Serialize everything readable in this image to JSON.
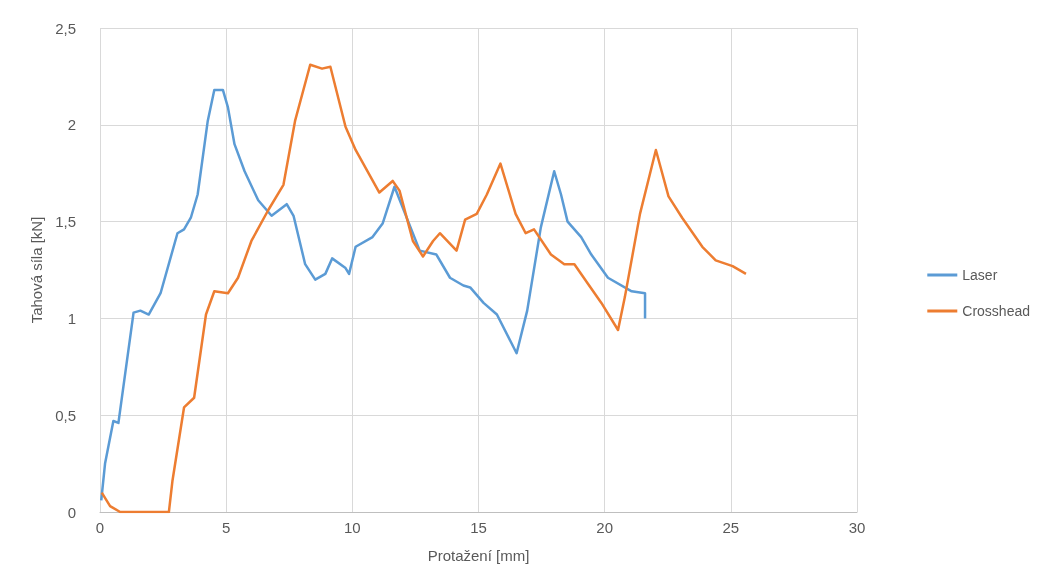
{
  "chart_data": {
    "type": "line",
    "xlabel": "Protažení [mm]",
    "ylabel": "Tahová síla [kN]",
    "xlim": [
      0,
      30
    ],
    "xticks": [
      0,
      5,
      10,
      15,
      20,
      25,
      30
    ],
    "ylim": [
      0,
      2.5
    ],
    "yticks": [
      {
        "value": 0,
        "label": "0"
      },
      {
        "value": 0.5,
        "label": "0,5"
      },
      {
        "value": 1,
        "label": "1"
      },
      {
        "value": 1.5,
        "label": "1,5"
      },
      {
        "value": 2,
        "label": "2"
      },
      {
        "value": 2.5,
        "label": "2,5"
      }
    ],
    "grid": true,
    "legend": "right",
    "marker": "none",
    "line_style": "solid",
    "series": [
      {
        "name": "Laser",
        "color": "#5b9bd5",
        "x": [
          0.05,
          0.2,
          0.53,
          0.73,
          0.93,
          1.33,
          1.6,
          1.93,
          2.4,
          3.07,
          3.33,
          3.6,
          3.87,
          4.27,
          4.53,
          4.87,
          5.07,
          5.33,
          5.73,
          6.27,
          6.8,
          7.4,
          7.67,
          8.13,
          8.53,
          8.93,
          9.2,
          9.73,
          9.87,
          10.13,
          10.8,
          11.2,
          11.67,
          12.67,
          13.33,
          13.87,
          14.4,
          14.67,
          15.2,
          15.73,
          16.51,
          16.93,
          17.47,
          18,
          18.27,
          18.53,
          19.07,
          19.47,
          20.13,
          21.07,
          21.6,
          21.6
        ],
        "values": [
          0.06,
          0.25,
          0.47,
          0.46,
          0.65,
          1.03,
          1.04,
          1.02,
          1.13,
          1.44,
          1.46,
          1.52,
          1.64,
          2.02,
          2.18,
          2.18,
          2.09,
          1.9,
          1.76,
          1.61,
          1.53,
          1.59,
          1.53,
          1.28,
          1.2,
          1.23,
          1.31,
          1.26,
          1.23,
          1.37,
          1.42,
          1.49,
          1.68,
          1.35,
          1.33,
          1.21,
          1.17,
          1.16,
          1.08,
          1.02,
          0.82,
          1.04,
          1.47,
          1.76,
          1.64,
          1.5,
          1.42,
          1.33,
          1.21,
          1.14,
          1.13,
          1.0
        ]
      },
      {
        "name": "Crosshead",
        "color": "#ed7d31",
        "x": [
          0.07,
          0.4,
          0.8,
          2.73,
          2.87,
          3.33,
          3.73,
          4.2,
          4.53,
          5.07,
          5.47,
          6.0,
          6.67,
          7.27,
          7.73,
          8.33,
          8.8,
          9.13,
          9.73,
          10.13,
          11.07,
          11.6,
          11.87,
          12.4,
          12.8,
          13.2,
          13.47,
          14.13,
          14.47,
          14.93,
          15.33,
          15.87,
          16.47,
          16.87,
          17.2,
          17.87,
          18.4,
          18.8,
          19.33,
          19.87,
          20.53,
          20.8,
          21.4,
          22.03,
          22.53,
          23.07,
          23.87,
          24.4,
          25.07,
          25.6
        ],
        "values": [
          0.1,
          0.03,
          0,
          0,
          0.16,
          0.54,
          0.59,
          1.02,
          1.14,
          1.13,
          1.21,
          1.4,
          1.56,
          1.69,
          2.02,
          2.31,
          2.29,
          2.3,
          1.99,
          1.87,
          1.65,
          1.71,
          1.66,
          1.4,
          1.32,
          1.4,
          1.44,
          1.35,
          1.51,
          1.54,
          1.64,
          1.8,
          1.54,
          1.44,
          1.46,
          1.33,
          1.28,
          1.28,
          1.18,
          1.08,
          0.94,
          1.11,
          1.54,
          1.87,
          1.63,
          1.52,
          1.37,
          1.3,
          1.27,
          1.23
        ]
      }
    ]
  }
}
